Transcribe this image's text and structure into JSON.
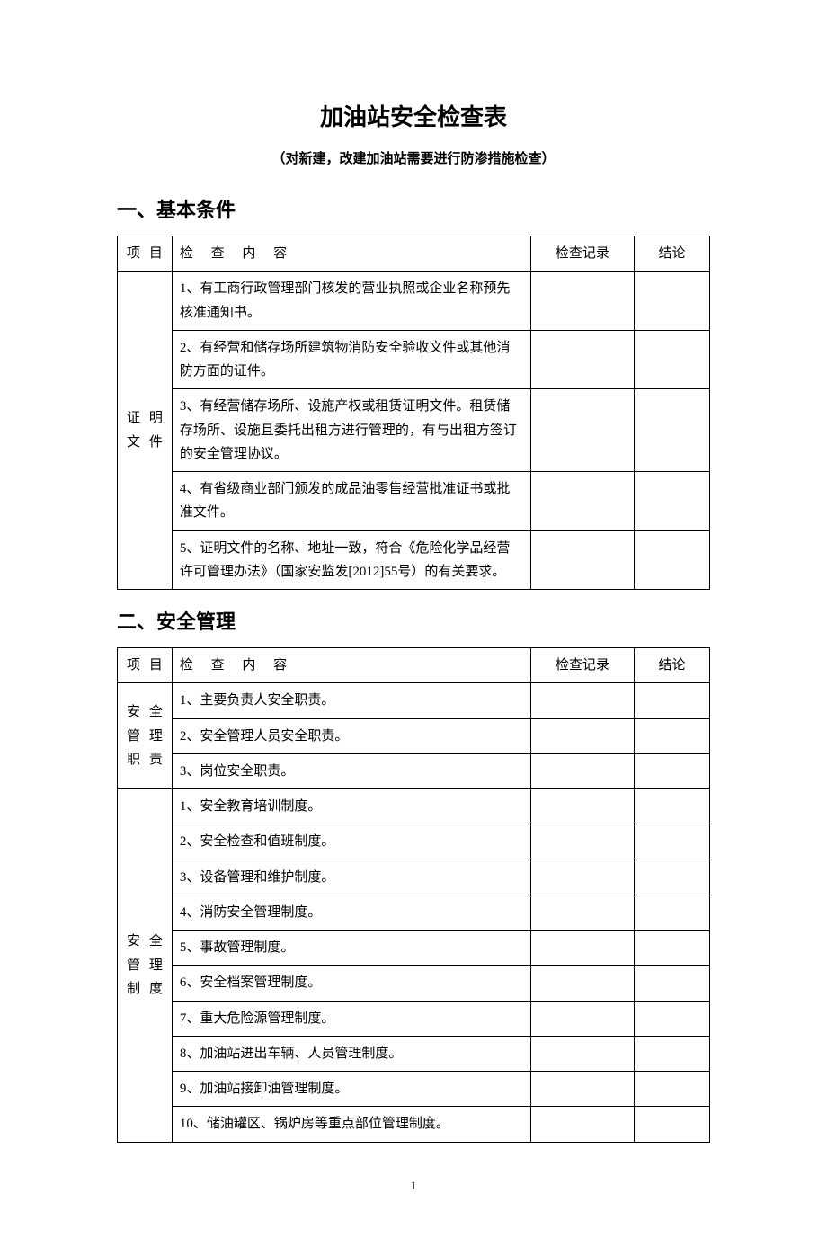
{
  "title": "加油站安全检查表",
  "subtitle": "（对新建，改建加油站需要进行防渗措施检查）",
  "page_number": "1",
  "headers": {
    "category": "项目",
    "content": "检 查 内 容",
    "record": "检查记录",
    "conclusion": "结论"
  },
  "sections": [
    {
      "heading": "一、基本条件",
      "groups": [
        {
          "category": "证明文件",
          "items": [
            "1、有工商行政管理部门核发的营业执照或企业名称预先核准通知书。",
            "2、有经营和储存场所建筑物消防安全验收文件或其他消防方面的证件。",
            "3、有经营储存场所、设施产权或租赁证明文件。租赁储存场所、设施且委托出租方进行管理的，有与出租方签订的安全管理协议。",
            "4、有省级商业部门颁发的成品油零售经营批准证书或批准文件。",
            "5、证明文件的名称、地址一致，符合《危险化学品经营许可管理办法》（国家安监发[2012]55号）的有关要求。"
          ]
        }
      ]
    },
    {
      "heading": "二、安全管理",
      "groups": [
        {
          "category": "安全管理职责",
          "items": [
            "1、主要负责人安全职责。",
            "2、安全管理人员安全职责。",
            "3、岗位安全职责。"
          ]
        },
        {
          "category": "安全管理制度",
          "items": [
            "1、安全教育培训制度。",
            "2、安全检查和值班制度。",
            "3、设备管理和维护制度。",
            "4、消防安全管理制度。",
            "5、事故管理制度。",
            "6、安全档案管理制度。",
            "7、重大危险源管理制度。",
            "8、加油站进出车辆、人员管理制度。",
            "9、加油站接卸油管理制度。",
            "10、储油罐区、锅炉房等重点部位管理制度。"
          ]
        }
      ]
    }
  ]
}
